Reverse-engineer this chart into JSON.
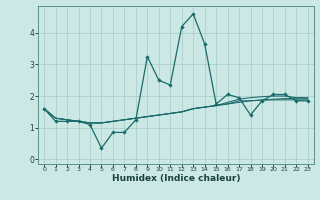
{
  "title": "",
  "xlabel": "Humidex (Indice chaleur)",
  "ylabel": "",
  "bg_color": "#cce8e4",
  "line_color": "#1a6b6b",
  "grid_color": "#aacfcb",
  "xlim": [
    -0.5,
    23.5
  ],
  "ylim": [
    -0.15,
    4.85
  ],
  "xticks": [
    0,
    1,
    2,
    3,
    4,
    5,
    6,
    7,
    8,
    9,
    10,
    11,
    12,
    13,
    14,
    15,
    16,
    17,
    18,
    19,
    20,
    21,
    22,
    23
  ],
  "yticks": [
    0,
    1,
    2,
    3,
    4
  ],
  "series": [
    [
      1.6,
      1.2,
      1.2,
      1.2,
      1.1,
      0.35,
      0.85,
      0.85,
      1.25,
      3.25,
      2.5,
      2.35,
      4.2,
      4.6,
      3.65,
      1.75,
      2.05,
      1.95,
      1.4,
      1.85,
      2.05,
      2.05,
      1.85,
      1.85
    ],
    [
      1.6,
      1.3,
      1.25,
      1.2,
      1.15,
      1.15,
      1.2,
      1.25,
      1.3,
      1.35,
      1.4,
      1.45,
      1.5,
      1.6,
      1.65,
      1.7,
      1.75,
      1.8,
      1.85,
      1.88,
      1.9,
      1.92,
      1.93,
      1.93
    ],
    [
      1.6,
      1.3,
      1.25,
      1.2,
      1.15,
      1.15,
      1.2,
      1.25,
      1.3,
      1.35,
      1.4,
      1.45,
      1.5,
      1.6,
      1.65,
      1.7,
      1.8,
      1.9,
      1.95,
      1.98,
      2.0,
      2.0,
      1.95,
      1.95
    ],
    [
      1.6,
      1.3,
      1.25,
      1.2,
      1.15,
      1.15,
      1.2,
      1.25,
      1.3,
      1.35,
      1.4,
      1.45,
      1.5,
      1.6,
      1.65,
      1.7,
      1.75,
      1.85,
      1.85,
      1.87,
      1.88,
      1.88,
      1.88,
      1.88
    ]
  ]
}
